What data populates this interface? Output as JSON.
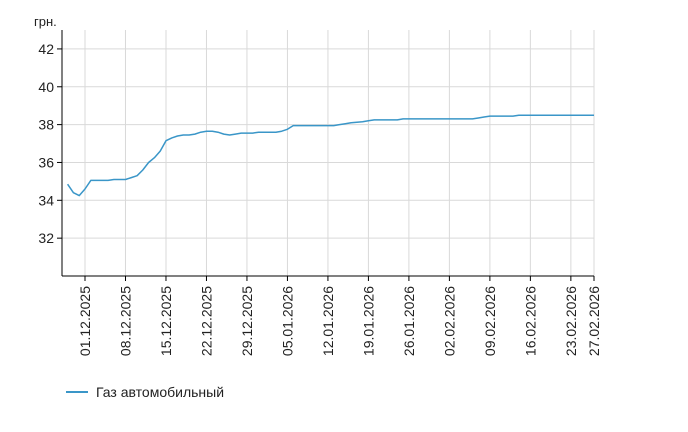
{
  "chart_data": {
    "type": "line",
    "ylabel": "грн.",
    "ylim": [
      30,
      43
    ],
    "yticks": [
      32,
      34,
      36,
      38,
      40,
      42
    ],
    "grid": true,
    "legend_placement": "bottom-left",
    "x_tick_labels": [
      "01.12.2025",
      "08.12.2025",
      "15.12.2025",
      "22.12.2025",
      "29.12.2025",
      "05.01.2026",
      "12.01.2026",
      "19.01.2026",
      "26.01.2026",
      "02.02.2026",
      "09.02.2026",
      "16.02.2026",
      "23.02.2026",
      "27.02.2026"
    ],
    "series": [
      {
        "name": "Газ автомобильный",
        "color": "#3a96c8",
        "points": [
          [
            "28.11.2025",
            34.85
          ],
          [
            "29.11.2025",
            34.4
          ],
          [
            "30.11.2025",
            34.25
          ],
          [
            "01.12.2025",
            34.6
          ],
          [
            "02.12.2025",
            35.05
          ],
          [
            "03.12.2025",
            35.05
          ],
          [
            "04.12.2025",
            35.05
          ],
          [
            "05.12.2025",
            35.05
          ],
          [
            "06.12.2025",
            35.1
          ],
          [
            "07.12.2025",
            35.1
          ],
          [
            "08.12.2025",
            35.1
          ],
          [
            "09.12.2025",
            35.2
          ],
          [
            "10.12.2025",
            35.3
          ],
          [
            "11.12.2025",
            35.6
          ],
          [
            "12.12.2025",
            36.0
          ],
          [
            "13.12.2025",
            36.25
          ],
          [
            "14.12.2025",
            36.6
          ],
          [
            "15.12.2025",
            37.15
          ],
          [
            "16.12.2025",
            37.3
          ],
          [
            "17.12.2025",
            37.4
          ],
          [
            "18.12.2025",
            37.45
          ],
          [
            "19.12.2025",
            37.45
          ],
          [
            "20.12.2025",
            37.5
          ],
          [
            "21.12.2025",
            37.6
          ],
          [
            "22.12.2025",
            37.65
          ],
          [
            "23.12.2025",
            37.65
          ],
          [
            "24.12.2025",
            37.6
          ],
          [
            "25.12.2025",
            37.5
          ],
          [
            "26.12.2025",
            37.45
          ],
          [
            "27.12.2025",
            37.5
          ],
          [
            "28.12.2025",
            37.55
          ],
          [
            "29.12.2025",
            37.55
          ],
          [
            "30.12.2025",
            37.55
          ],
          [
            "31.12.2025",
            37.6
          ],
          [
            "01.01.2026",
            37.6
          ],
          [
            "02.01.2026",
            37.6
          ],
          [
            "03.01.2026",
            37.6
          ],
          [
            "04.01.2026",
            37.65
          ],
          [
            "05.01.2026",
            37.75
          ],
          [
            "06.01.2026",
            37.95
          ],
          [
            "07.01.2026",
            37.95
          ],
          [
            "08.01.2026",
            37.95
          ],
          [
            "12.01.2026",
            37.95
          ],
          [
            "13.01.2026",
            37.95
          ],
          [
            "14.01.2026",
            38.0
          ],
          [
            "15.01.2026",
            38.05
          ],
          [
            "16.01.2026",
            38.1
          ],
          [
            "18.01.2026",
            38.15
          ],
          [
            "19.01.2026",
            38.2
          ],
          [
            "20.01.2026",
            38.25
          ],
          [
            "22.01.2026",
            38.25
          ],
          [
            "24.01.2026",
            38.25
          ],
          [
            "25.01.2026",
            38.3
          ],
          [
            "26.01.2026",
            38.3
          ],
          [
            "02.02.2026",
            38.3
          ],
          [
            "06.02.2026",
            38.3
          ],
          [
            "07.02.2026",
            38.35
          ],
          [
            "08.02.2026",
            38.4
          ],
          [
            "09.02.2026",
            38.45
          ],
          [
            "13.02.2026",
            38.45
          ],
          [
            "14.02.2026",
            38.5
          ],
          [
            "16.02.2026",
            38.5
          ],
          [
            "20.02.2026",
            38.5
          ],
          [
            "23.02.2026",
            38.5
          ],
          [
            "27.02.2026",
            38.5
          ]
        ]
      }
    ]
  }
}
